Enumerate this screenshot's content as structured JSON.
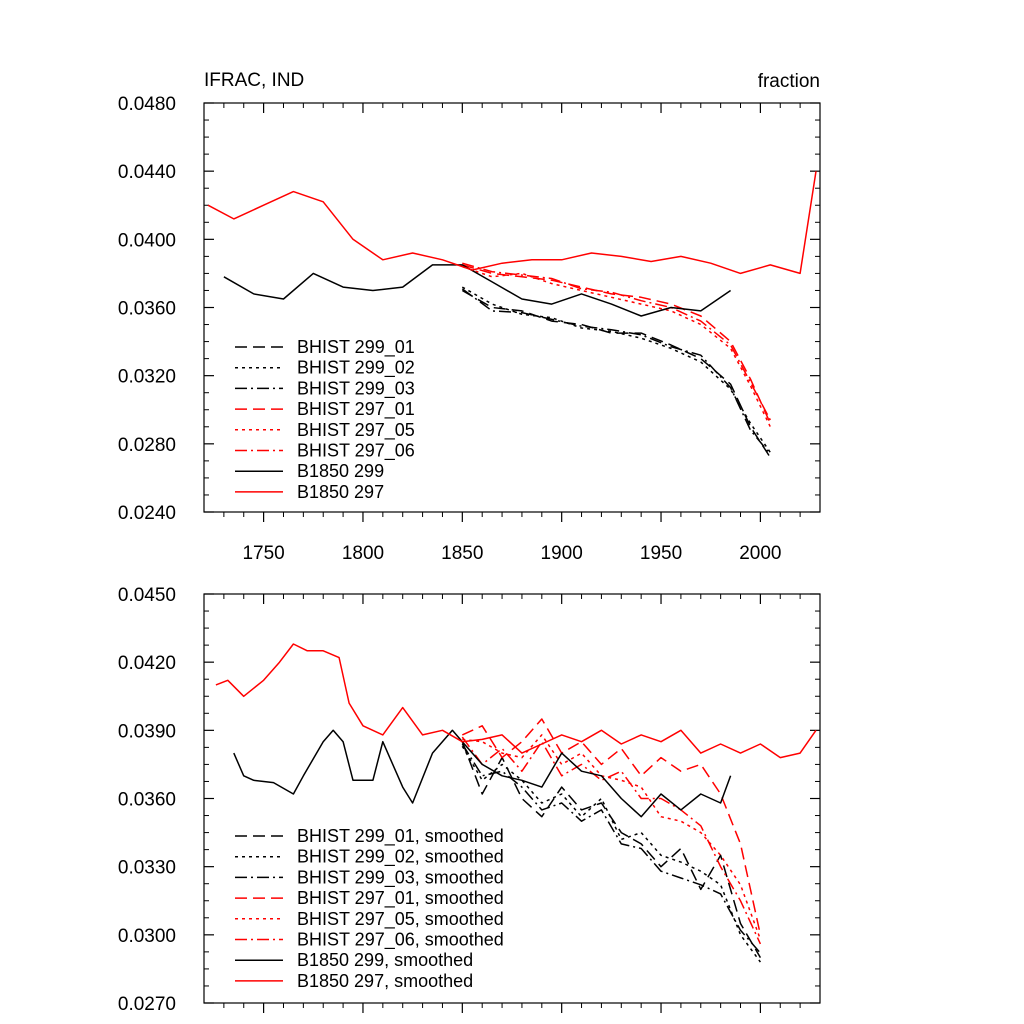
{
  "chart_data": [
    {
      "type": "line",
      "title": "IFRAC, IND",
      "units": "fraction",
      "xlabel": "",
      "ylabel": "",
      "xlim": [
        1720,
        2030
      ],
      "ylim": [
        0.024,
        0.048
      ],
      "xticks": [
        "1750",
        "1800",
        "1850",
        "1900",
        "1950",
        "2000"
      ],
      "yticks": [
        "0.0240",
        "0.0280",
        "0.0320",
        "0.0360",
        "0.0400",
        "0.0440",
        "0.0480"
      ],
      "legend_position": "lower-left",
      "series": [
        {
          "name": "BHIST 299_01",
          "color": "#000000",
          "dash": "dash",
          "x": [
            1850,
            1865,
            1880,
            1895,
            1910,
            1925,
            1940,
            1955,
            1970,
            1985,
            1995,
            2005
          ],
          "y": [
            0.037,
            0.036,
            0.0358,
            0.0352,
            0.035,
            0.0345,
            0.0345,
            0.0338,
            0.033,
            0.0315,
            0.029,
            0.0272
          ]
        },
        {
          "name": "BHIST 299_02",
          "color": "#000000",
          "dash": "dot",
          "x": [
            1850,
            1865,
            1880,
            1895,
            1910,
            1925,
            1940,
            1955,
            1970,
            1985,
            1995,
            2005
          ],
          "y": [
            0.0372,
            0.0362,
            0.0356,
            0.0354,
            0.0348,
            0.0346,
            0.0342,
            0.0336,
            0.0328,
            0.0312,
            0.0292,
            0.0275
          ]
        },
        {
          "name": "BHIST 299_03",
          "color": "#000000",
          "dash": "dashdot",
          "x": [
            1850,
            1865,
            1880,
            1895,
            1910,
            1925,
            1940,
            1955,
            1970,
            1985,
            1995,
            2005
          ],
          "y": [
            0.0371,
            0.0358,
            0.0357,
            0.0353,
            0.0349,
            0.0347,
            0.0344,
            0.0337,
            0.0332,
            0.0313,
            0.0288,
            0.0274
          ]
        },
        {
          "name": "BHIST 297_01",
          "color": "#ff0000",
          "dash": "dash",
          "x": [
            1850,
            1865,
            1880,
            1895,
            1910,
            1925,
            1940,
            1955,
            1970,
            1985,
            1995,
            2005
          ],
          "y": [
            0.0385,
            0.038,
            0.0378,
            0.0376,
            0.0372,
            0.0368,
            0.0366,
            0.0362,
            0.0355,
            0.034,
            0.0318,
            0.0292
          ]
        },
        {
          "name": "BHIST 297_05",
          "color": "#ff0000",
          "dash": "dot",
          "x": [
            1850,
            1865,
            1880,
            1895,
            1910,
            1925,
            1940,
            1955,
            1970,
            1985,
            1995,
            2005
          ],
          "y": [
            0.0384,
            0.0378,
            0.038,
            0.0374,
            0.037,
            0.0366,
            0.0362,
            0.0358,
            0.035,
            0.0336,
            0.0314,
            0.029
          ]
        },
        {
          "name": "BHIST 297_06",
          "color": "#ff0000",
          "dash": "dashdot",
          "x": [
            1850,
            1865,
            1880,
            1895,
            1910,
            1925,
            1940,
            1955,
            1970,
            1985,
            1995,
            2005
          ],
          "y": [
            0.0386,
            0.0381,
            0.0379,
            0.0377,
            0.0371,
            0.0369,
            0.0364,
            0.036,
            0.0352,
            0.0338,
            0.0316,
            0.0294
          ]
        },
        {
          "name": "B1850 299",
          "color": "#000000",
          "dash": "solid",
          "x": [
            1730,
            1745,
            1760,
            1775,
            1790,
            1805,
            1820,
            1835,
            1850,
            1865,
            1880,
            1895,
            1910,
            1925,
            1940,
            1955,
            1970,
            1985
          ],
          "y": [
            0.0378,
            0.0368,
            0.0365,
            0.038,
            0.0372,
            0.037,
            0.0372,
            0.0385,
            0.0385,
            0.0375,
            0.0365,
            0.0362,
            0.0368,
            0.0362,
            0.0355,
            0.036,
            0.0358,
            0.037
          ]
        },
        {
          "name": "B1850 297",
          "color": "#ff0000",
          "dash": "solid",
          "x": [
            1722,
            1735,
            1750,
            1765,
            1780,
            1795,
            1810,
            1825,
            1840,
            1855,
            1870,
            1885,
            1900,
            1915,
            1930,
            1945,
            1960,
            1975,
            1990,
            2005,
            2020,
            2028
          ],
          "y": [
            0.042,
            0.0412,
            0.042,
            0.0428,
            0.0422,
            0.04,
            0.0388,
            0.0392,
            0.0388,
            0.0382,
            0.0386,
            0.0388,
            0.0388,
            0.0392,
            0.039,
            0.0387,
            0.039,
            0.0386,
            0.038,
            0.0385,
            0.038,
            0.044
          ]
        }
      ]
    },
    {
      "type": "line",
      "title": "",
      "xlabel": "",
      "ylabel": "",
      "xlim": [
        1720,
        2030
      ],
      "ylim": [
        0.027,
        0.045
      ],
      "xticks": [],
      "yticks": [
        "0.0270",
        "0.0300",
        "0.0330",
        "0.0360",
        "0.0390",
        "0.0420",
        "0.0450"
      ],
      "legend_position": "lower-left",
      "series": [
        {
          "name": "BHIST 299_01, smoothed",
          "color": "#000000",
          "dash": "dash",
          "x": [
            1850,
            1860,
            1870,
            1880,
            1890,
            1900,
            1910,
            1920,
            1930,
            1940,
            1950,
            1960,
            1970,
            1980,
            1990,
            2000
          ],
          "y": [
            0.0385,
            0.0362,
            0.0378,
            0.036,
            0.0352,
            0.0365,
            0.0355,
            0.0358,
            0.0345,
            0.034,
            0.033,
            0.0338,
            0.032,
            0.0335,
            0.0305,
            0.029
          ]
        },
        {
          "name": "BHIST 299_02, smoothed",
          "color": "#000000",
          "dash": "dot",
          "x": [
            1850,
            1860,
            1870,
            1880,
            1890,
            1900,
            1910,
            1920,
            1930,
            1940,
            1950,
            1960,
            1970,
            1980,
            1990,
            2000
          ],
          "y": [
            0.0383,
            0.0368,
            0.0375,
            0.0368,
            0.0358,
            0.0362,
            0.0352,
            0.036,
            0.0342,
            0.0345,
            0.0335,
            0.0332,
            0.0328,
            0.0322,
            0.03,
            0.0288
          ]
        },
        {
          "name": "BHIST 299_03, smoothed",
          "color": "#000000",
          "dash": "dashdot",
          "x": [
            1850,
            1860,
            1870,
            1880,
            1890,
            1900,
            1910,
            1920,
            1930,
            1940,
            1950,
            1960,
            1970,
            1980,
            1990,
            2000
          ],
          "y": [
            0.0384,
            0.037,
            0.0372,
            0.0365,
            0.0355,
            0.0358,
            0.035,
            0.0355,
            0.034,
            0.0338,
            0.0328,
            0.0325,
            0.0322,
            0.0318,
            0.0302,
            0.0292
          ]
        },
        {
          "name": "BHIST 297_01, smoothed",
          "color": "#ff0000",
          "dash": "dash",
          "x": [
            1850,
            1860,
            1870,
            1880,
            1890,
            1900,
            1910,
            1920,
            1930,
            1940,
            1950,
            1960,
            1970,
            1980,
            1990,
            2000
          ],
          "y": [
            0.0388,
            0.0392,
            0.0378,
            0.0385,
            0.0395,
            0.038,
            0.0385,
            0.0375,
            0.0382,
            0.037,
            0.0378,
            0.0372,
            0.0375,
            0.0362,
            0.034,
            0.03
          ]
        },
        {
          "name": "BHIST 297_05, smoothed",
          "color": "#ff0000",
          "dash": "dot",
          "x": [
            1850,
            1860,
            1870,
            1880,
            1890,
            1900,
            1910,
            1920,
            1930,
            1940,
            1950,
            1960,
            1970,
            1980,
            1990,
            2000
          ],
          "y": [
            0.0386,
            0.0385,
            0.038,
            0.0378,
            0.0388,
            0.0375,
            0.038,
            0.037,
            0.0368,
            0.0365,
            0.0352,
            0.035,
            0.0345,
            0.0335,
            0.0322,
            0.0298
          ]
        },
        {
          "name": "BHIST 297_06, smoothed",
          "color": "#ff0000",
          "dash": "dashdot",
          "x": [
            1850,
            1860,
            1870,
            1880,
            1890,
            1900,
            1910,
            1920,
            1930,
            1940,
            1950,
            1960,
            1970,
            1980,
            1990,
            2000
          ],
          "y": [
            0.0387,
            0.0375,
            0.0382,
            0.0372,
            0.0385,
            0.037,
            0.0375,
            0.0368,
            0.0372,
            0.036,
            0.036,
            0.0355,
            0.0348,
            0.033,
            0.0315,
            0.0296
          ]
        },
        {
          "name": "B1850 299, smoothed",
          "color": "#000000",
          "dash": "solid",
          "x": [
            1735,
            1740,
            1745,
            1755,
            1765,
            1770,
            1780,
            1785,
            1790,
            1795,
            1805,
            1810,
            1820,
            1825,
            1835,
            1845,
            1850,
            1860,
            1870,
            1880,
            1890,
            1900,
            1910,
            1920,
            1930,
            1940,
            1950,
            1960,
            1970,
            1980,
            1985
          ],
          "y": [
            0.038,
            0.037,
            0.0368,
            0.0367,
            0.0362,
            0.037,
            0.0385,
            0.039,
            0.0385,
            0.0368,
            0.0368,
            0.0385,
            0.0365,
            0.0358,
            0.038,
            0.039,
            0.0385,
            0.0375,
            0.037,
            0.0368,
            0.0365,
            0.038,
            0.0372,
            0.037,
            0.036,
            0.0352,
            0.0362,
            0.0355,
            0.0362,
            0.0358,
            0.037
          ]
        },
        {
          "name": "B1850 297, smoothed",
          "color": "#ff0000",
          "dash": "solid",
          "x": [
            1726,
            1732,
            1740,
            1750,
            1758,
            1765,
            1772,
            1780,
            1788,
            1793,
            1800,
            1810,
            1820,
            1830,
            1840,
            1850,
            1860,
            1870,
            1880,
            1890,
            1900,
            1910,
            1920,
            1930,
            1940,
            1950,
            1960,
            1970,
            1980,
            1990,
            2000,
            2010,
            2020,
            2028
          ],
          "y": [
            0.041,
            0.0412,
            0.0405,
            0.0412,
            0.042,
            0.0428,
            0.0425,
            0.0425,
            0.0422,
            0.0402,
            0.0392,
            0.0388,
            0.04,
            0.0388,
            0.039,
            0.0385,
            0.0386,
            0.0388,
            0.038,
            0.0384,
            0.0388,
            0.0385,
            0.039,
            0.0384,
            0.0388,
            0.0385,
            0.039,
            0.038,
            0.0384,
            0.038,
            0.0384,
            0.0378,
            0.038,
            0.039
          ]
        }
      ]
    }
  ]
}
